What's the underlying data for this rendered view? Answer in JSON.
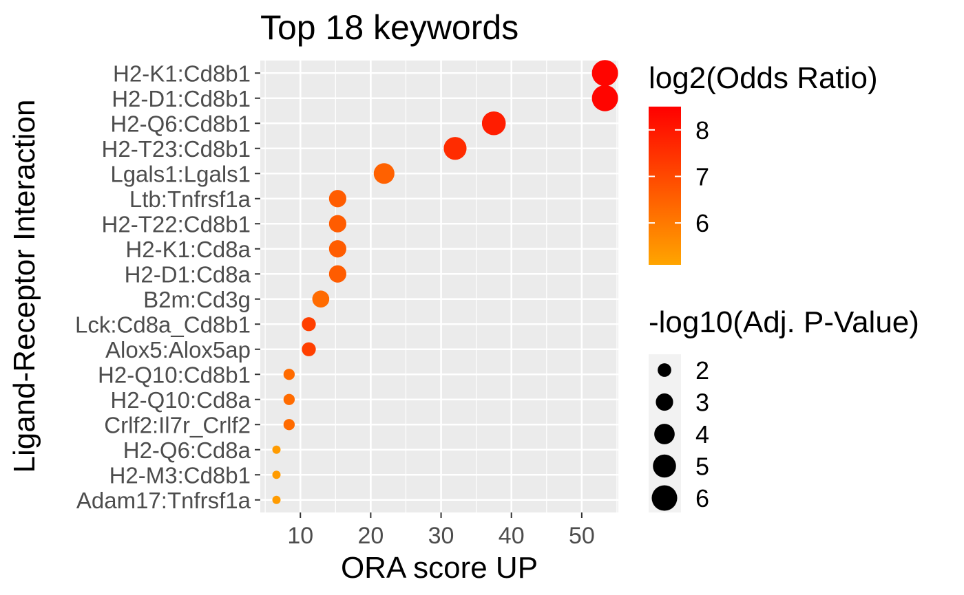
{
  "chart_data": {
    "type": "scatter",
    "title": "Top 18 keywords",
    "xlabel": "ORA score UP",
    "ylabel": "Ligand-Receptor Interaction",
    "xlim": [
      4.3,
      55.2
    ],
    "x_ticks": [
      10,
      20,
      30,
      40,
      50
    ],
    "grid": true,
    "categories": [
      "H2-K1:Cd8b1",
      "H2-D1:Cd8b1",
      "H2-Q6:Cd8b1",
      "H2-T23:Cd8b1",
      "Lgals1:Lgals1",
      "Ltb:Tnfrsf1a",
      "H2-T22:Cd8b1",
      "H2-K1:Cd8a",
      "H2-D1:Cd8a",
      "B2m:Cd3g",
      "Lck:Cd8a_Cd8b1",
      "Alox5:Alox5ap",
      "H2-Q10:Cd8b1",
      "H2-Q10:Cd8a",
      "Crlf2:Il7r_Crlf2",
      "H2-Q6:Cd8a",
      "H2-M3:Cd8b1",
      "Adam17:Tnfrsf1a"
    ],
    "points": [
      {
        "label": "H2-K1:Cd8b1",
        "x": 53.3,
        "log2_odds_ratio": 8.4,
        "neg_log10_adj_p": 6.3
      },
      {
        "label": "H2-D1:Cd8b1",
        "x": 53.3,
        "log2_odds_ratio": 8.4,
        "neg_log10_adj_p": 6.3
      },
      {
        "label": "H2-Q6:Cd8b1",
        "x": 37.5,
        "log2_odds_ratio": 7.9,
        "neg_log10_adj_p": 5.3
      },
      {
        "label": "H2-T23:Cd8b1",
        "x": 32.0,
        "log2_odds_ratio": 7.6,
        "neg_log10_adj_p": 4.9
      },
      {
        "label": "Lgals1:Lgals1",
        "x": 21.9,
        "log2_odds_ratio": 6.5,
        "neg_log10_adj_p": 4.1
      },
      {
        "label": "Ltb:Tnfrsf1a",
        "x": 15.3,
        "log2_odds_ratio": 6.6,
        "neg_log10_adj_p": 3.0
      },
      {
        "label": "H2-T22:Cd8b1",
        "x": 15.3,
        "log2_odds_ratio": 6.6,
        "neg_log10_adj_p": 3.0
      },
      {
        "label": "H2-K1:Cd8a",
        "x": 15.3,
        "log2_odds_ratio": 6.6,
        "neg_log10_adj_p": 3.0
      },
      {
        "label": "H2-D1:Cd8a",
        "x": 15.3,
        "log2_odds_ratio": 6.6,
        "neg_log10_adj_p": 3.0
      },
      {
        "label": "B2m:Cd3g",
        "x": 12.9,
        "log2_odds_ratio": 6.3,
        "neg_log10_adj_p": 2.9
      },
      {
        "label": "Lck:Cd8a_Cd8b1",
        "x": 11.2,
        "log2_odds_ratio": 7.2,
        "neg_log10_adj_p": 2.1
      },
      {
        "label": "Alox5:Alox5ap",
        "x": 11.2,
        "log2_odds_ratio": 7.2,
        "neg_log10_adj_p": 2.1
      },
      {
        "label": "H2-Q10:Cd8b1",
        "x": 8.4,
        "log2_odds_ratio": 6.3,
        "neg_log10_adj_p": 1.5
      },
      {
        "label": "H2-Q10:Cd8a",
        "x": 8.4,
        "log2_odds_ratio": 6.3,
        "neg_log10_adj_p": 1.5
      },
      {
        "label": "Crlf2:Il7r_Crlf2",
        "x": 8.4,
        "log2_odds_ratio": 6.3,
        "neg_log10_adj_p": 1.5
      },
      {
        "label": "H2-Q6:Cd8a",
        "x": 6.6,
        "log2_odds_ratio": 5.3,
        "neg_log10_adj_p": 1.0
      },
      {
        "label": "H2-M3:Cd8b1",
        "x": 6.6,
        "log2_odds_ratio": 5.3,
        "neg_log10_adj_p": 1.0
      },
      {
        "label": "Adam17:Tnfrsf1a",
        "x": 6.6,
        "log2_odds_ratio": 5.3,
        "neg_log10_adj_p": 1.0
      }
    ],
    "color_legend": {
      "title": "log2(Odds Ratio)",
      "ticks": [
        6,
        7,
        8
      ],
      "range": [
        5.1,
        8.5
      ],
      "low_color": "#FFA500",
      "high_color": "#FF0000"
    },
    "size_legend": {
      "title": "-log10(Adj. P-Value)",
      "values": [
        2,
        3,
        4,
        5,
        6
      ],
      "range": [
        1.0,
        6.3
      ]
    },
    "colors": {
      "panel_bg": "#EBEBEB",
      "grid": "#FFFFFF",
      "axis_text": "#4D4D4D",
      "title_text": "#000000",
      "legend_key_bg": "#F2F2F2"
    }
  }
}
